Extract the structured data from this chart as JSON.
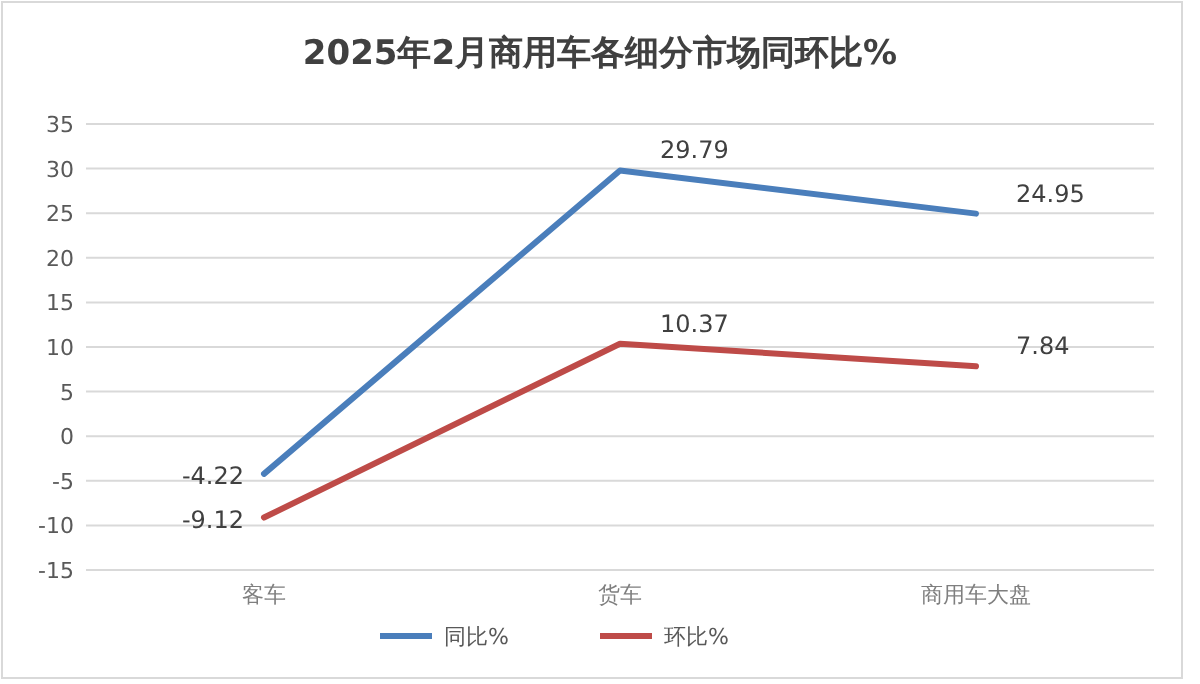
{
  "chart_data": {
    "type": "line",
    "title": "2025年2月商用车各细分市场同环比%",
    "categories": [
      "客车",
      "货车",
      "商用车大盘"
    ],
    "series": [
      {
        "name": "同比%",
        "color": "#4a7ebb",
        "values": [
          -4.22,
          29.79,
          24.95
        ]
      },
      {
        "name": "环比%",
        "color": "#be4b48",
        "values": [
          -9.12,
          10.37,
          7.84
        ]
      }
    ],
    "ylim": [
      -15,
      35
    ],
    "yticks": [
      -15,
      -10,
      -5,
      0,
      5,
      10,
      15,
      20,
      25,
      30,
      35
    ],
    "grid": "y",
    "legend": "bottom",
    "data_labels": true,
    "marker": "none",
    "line_style": "solid"
  }
}
